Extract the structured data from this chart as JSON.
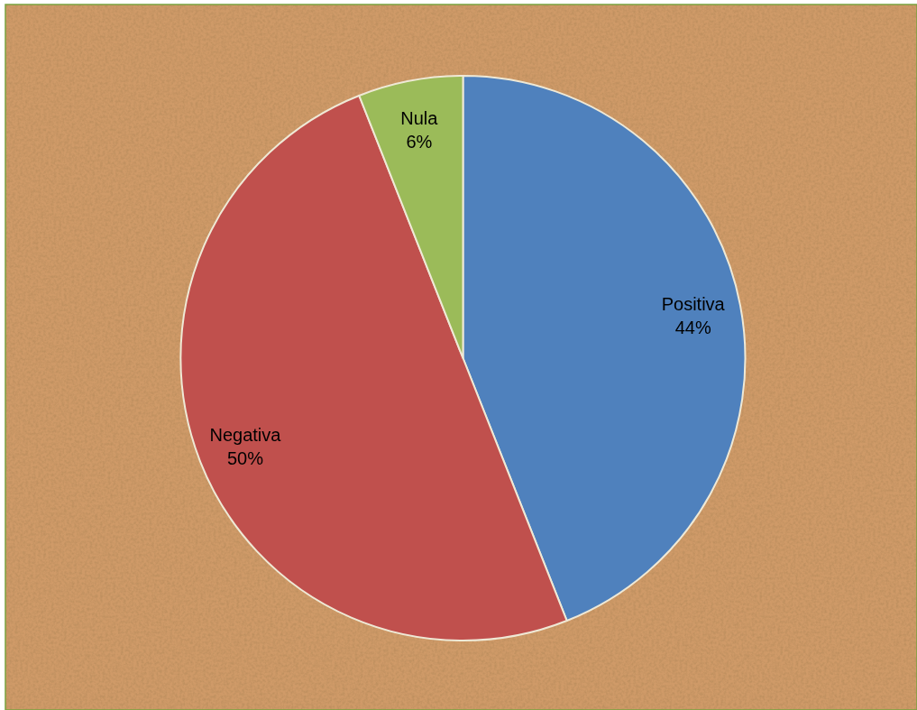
{
  "chart_data": {
    "type": "pie",
    "categories": [
      "Positiva",
      "Negativa",
      "Nula"
    ],
    "values": [
      44,
      50,
      6
    ],
    "colors": [
      "#4f81bd",
      "#c0504d",
      "#9bbb59"
    ],
    "value_labels": [
      "44%",
      "50%",
      "6%"
    ]
  }
}
